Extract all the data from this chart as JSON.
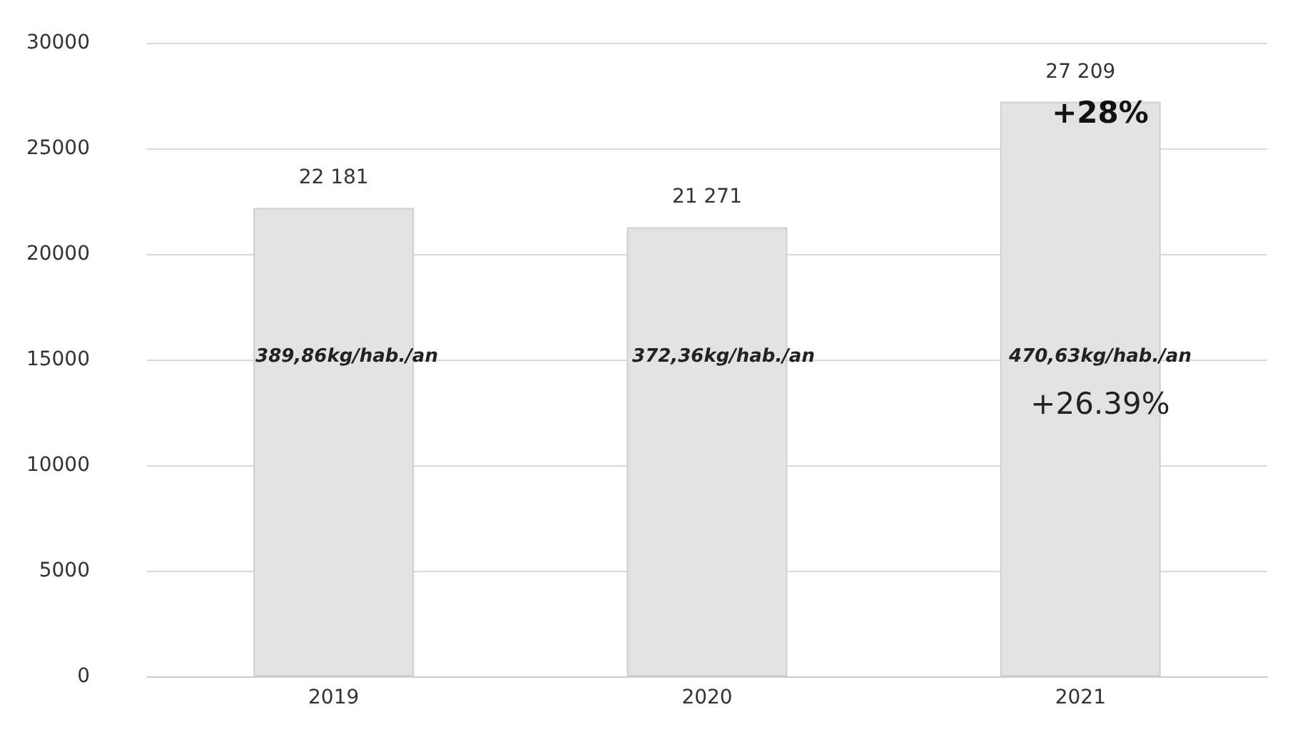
{
  "chart_data": {
    "type": "bar",
    "categories": [
      "2019",
      "2020",
      "2021"
    ],
    "values": [
      22181,
      21271,
      27209
    ],
    "value_labels": [
      "22 181",
      "21 271",
      "27 209"
    ],
    "color": "#e3e3e3",
    "ylim": [
      0,
      30000
    ],
    "yticks": [
      0,
      5000,
      10000,
      15000,
      20000,
      25000,
      30000
    ],
    "grid": "y",
    "annotations": [
      "389,86kg/hab./an",
      "372,36kg/hab./an",
      "470,63kg/hab./an",
      "+28%",
      "+26.39%"
    ]
  }
}
